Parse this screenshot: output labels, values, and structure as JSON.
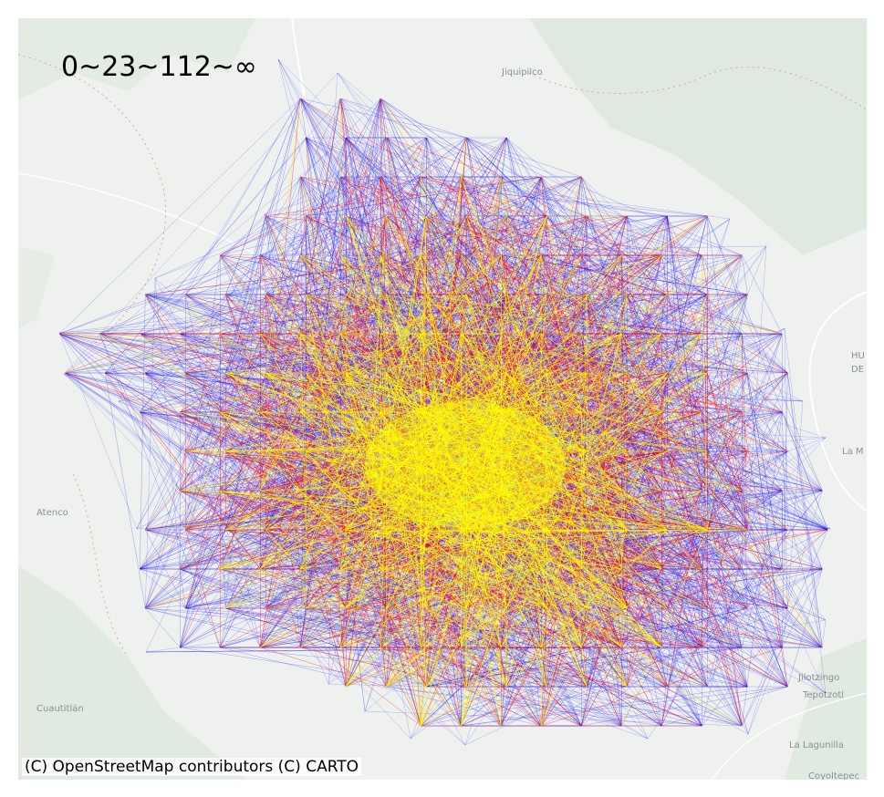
{
  "map": {
    "legend_title": "0~23~112~∞",
    "attribution": "(C) OpenStreetMap contributors (C) CARTO",
    "place_labels": [
      "Jiquipilco",
      "La Lagunilla",
      "La M",
      "HU",
      "DE",
      "Coyoltepec",
      "Jilotzingo",
      "Tepotzotl",
      "Atenco",
      "Cuautitlán"
    ],
    "basemap": {
      "land": "#eef1ee",
      "green": "#dfe9df",
      "road": "#ffffff",
      "border": "#d9a3a3"
    },
    "flow_colors": {
      "low": "#0000ff",
      "mid": "#ff0000",
      "high": "#ffff00"
    },
    "flow_classes": [
      "0~23",
      "23~112",
      "112~∞"
    ]
  }
}
